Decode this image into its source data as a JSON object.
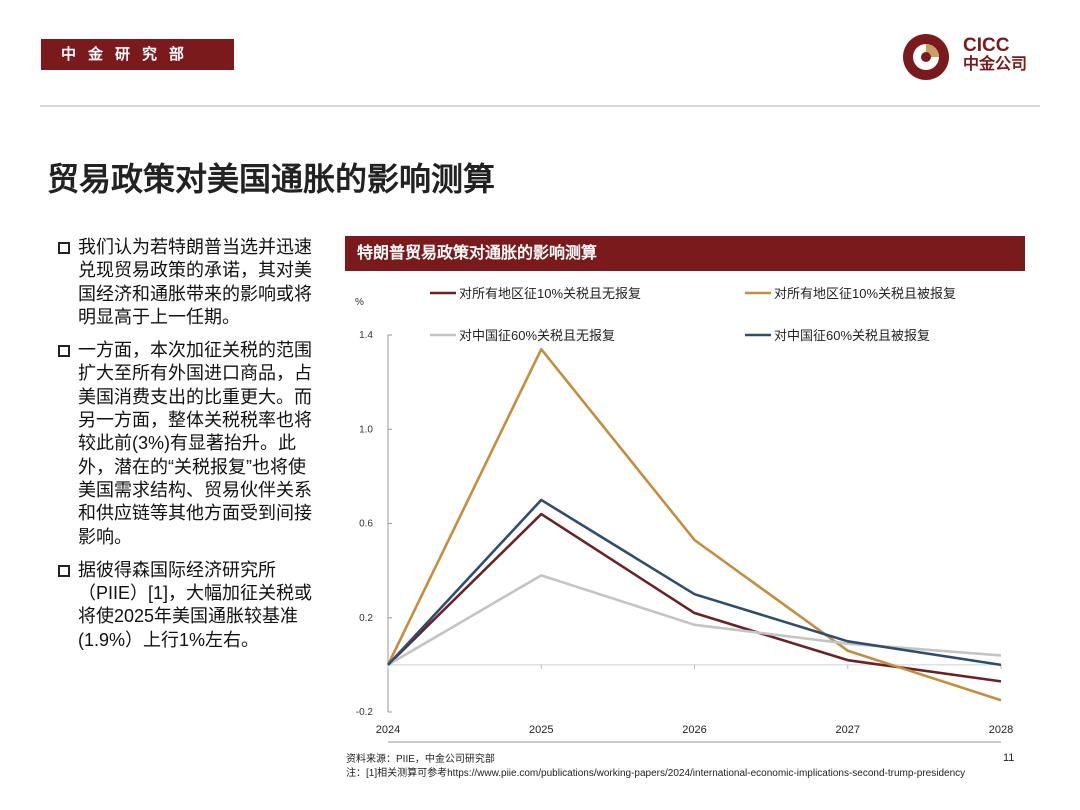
{
  "header": {
    "department": "中金研究部",
    "logo_en": "CICC",
    "logo_cn": "中金公司"
  },
  "page_title": "贸易政策对美国通胀的影响测算",
  "bullets": [
    "我们认为若特朗普当选并迅速兑现贸易政策的承诺，其对美国经济和通胀带来的影响或将明显高于上一任期。",
    "一方面，本次加征关税的范围扩大至所有外国进口商品，占美国消费支出的比重更大。而另一方面，整体关税税率也将较此前(3%)有显著抬升。此外，潜在的“关税报复”也将使美国需求结构、贸易伙伴关系和供应链等其他方面受到间接影响。",
    "据彼得森国际经济研究所（PIIE）[1]，大幅加征关税或将使2025年美国通胀较基准(1.9%）上行1%左右。"
  ],
  "chart_header": "特朗普贸易政策对通胀的影响测算",
  "chart_data": {
    "type": "line",
    "title": "特朗普贸易政策对通胀的影响测算",
    "ylabel": "%",
    "xlabel": "",
    "x": [
      "2024",
      "2025",
      "2026",
      "2027",
      "2028"
    ],
    "ylim": [
      -0.2,
      1.4
    ],
    "yticks": [
      "1.4",
      "1.0",
      "0.6",
      "0.2",
      "-0.2"
    ],
    "ytick_values": [
      1.4,
      1.0,
      0.6,
      0.2,
      -0.2
    ],
    "grid": false,
    "legend_position": "top",
    "series": [
      {
        "name": "对所有地区征10%关税且无报复",
        "color": "#6b2227",
        "values": [
          0.0,
          0.64,
          0.22,
          0.02,
          -0.07
        ]
      },
      {
        "name": "对所有地区征10%关税且被报复",
        "color": "#c58d3e",
        "values": [
          0.0,
          1.34,
          0.53,
          0.06,
          -0.15
        ]
      },
      {
        "name": "对中国征60%关税且无报复",
        "color": "#c4c4c4",
        "values": [
          0.0,
          0.38,
          0.17,
          0.09,
          0.04
        ]
      },
      {
        "name": "对中国征60%关税且被报复",
        "color": "#2e4d6f",
        "values": [
          0.0,
          0.7,
          0.3,
          0.1,
          0.0
        ]
      }
    ]
  },
  "footer": {
    "source": "资料来源：PIIE，中金公司研究部",
    "note": "注：[1]相关测算可参考https://www.piie.com/publications/working-papers/2024/international-economic-implications-second-trump-presidency",
    "page_number": "11"
  }
}
